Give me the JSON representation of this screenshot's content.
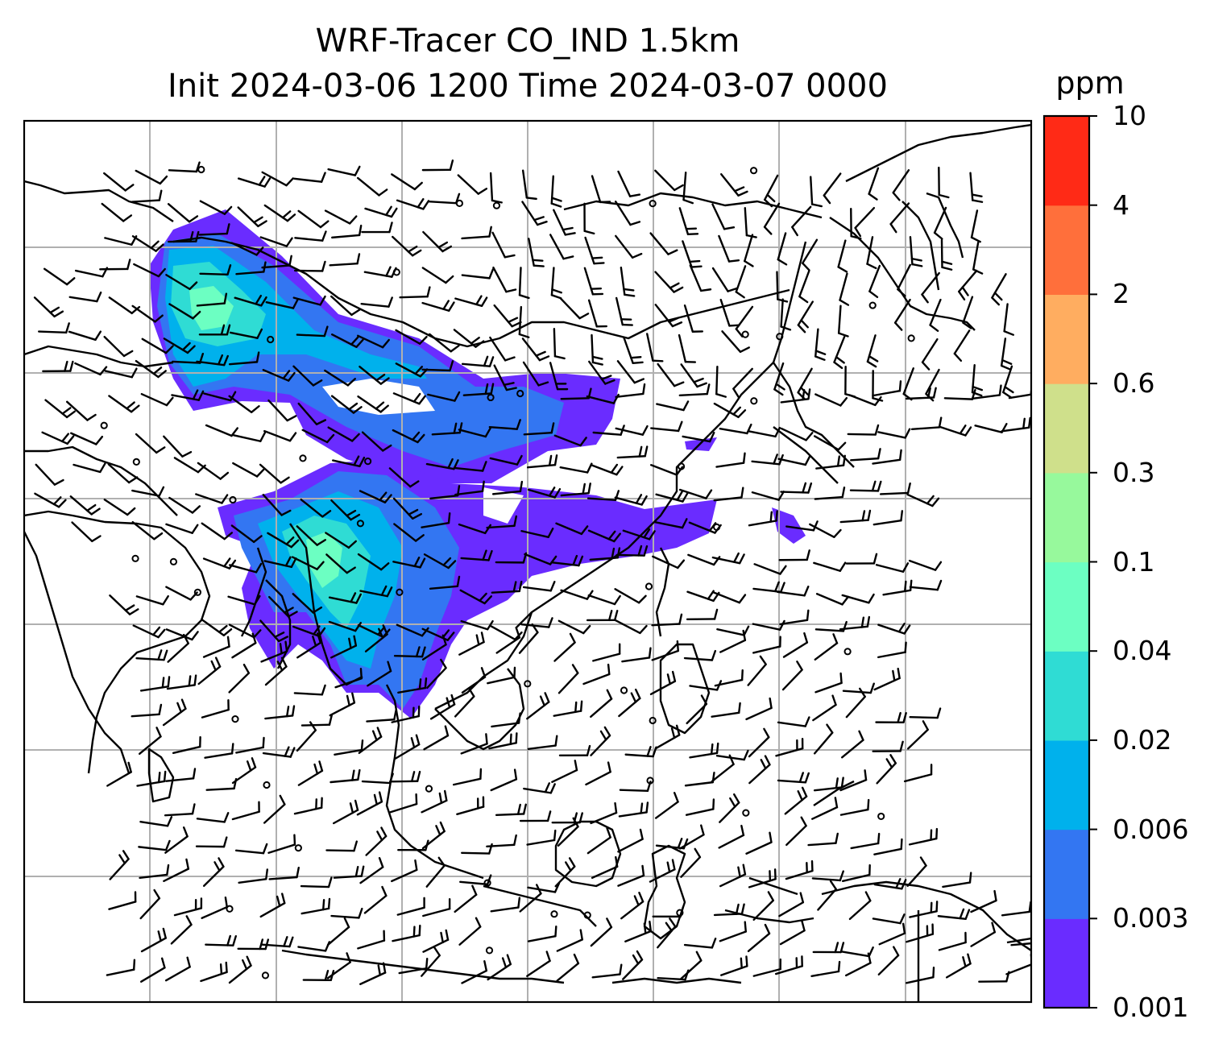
{
  "title": {
    "line1": "WRF-Tracer CO_IND 1.5km",
    "line2": "Init 2024-03-06 1200 Time 2024-03-07 0000"
  },
  "colorbar": {
    "unit": "ppm",
    "levels": [
      "0.001",
      "0.003",
      "0.006",
      "0.02",
      "0.04",
      "0.1",
      "0.3",
      "0.6",
      "2",
      "4",
      "10"
    ],
    "colors": [
      "#6a2cff",
      "#3376f2",
      "#00b1ec",
      "#2fdcd4",
      "#6cffc2",
      "#97f99c",
      "#cfe08b",
      "#ffad60",
      "#ff6f3b",
      "#ff2a16"
    ]
  },
  "map": {
    "grid": true,
    "grid_color": "#b0b0b0",
    "coastline_color": "#000000",
    "overlay": "wind barbs",
    "field": "CO_IND tracer concentration"
  }
}
